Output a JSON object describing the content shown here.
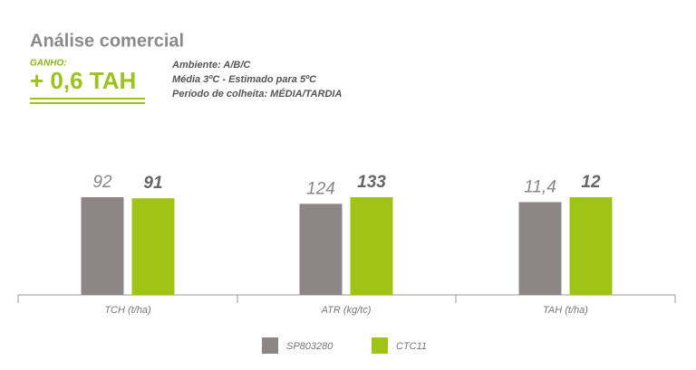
{
  "header": {
    "title": "Análise comercial",
    "gain_label": "GANHO:",
    "gain": "+ 0,6 TAH",
    "notes": [
      "Ambiente: A/B/C",
      "Média 3ºC - Estimado para 5ºC",
      "Período de colheita: MÉDIA/TARDIA"
    ]
  },
  "chart_data": {
    "type": "bar",
    "categories": [
      "TCH (t/ha)",
      "ATR (kg/tc)",
      "TAH (t/ha)"
    ],
    "series": [
      {
        "name": "SP803280",
        "color": "#8c8786",
        "values": [
          92,
          124,
          11.4
        ],
        "value_labels": [
          "92",
          "124",
          "11,4"
        ]
      },
      {
        "name": "CTC11",
        "color": "#a0c415",
        "values": [
          91,
          133,
          12
        ],
        "value_labels": [
          "91",
          "133",
          "12"
        ]
      }
    ]
  }
}
